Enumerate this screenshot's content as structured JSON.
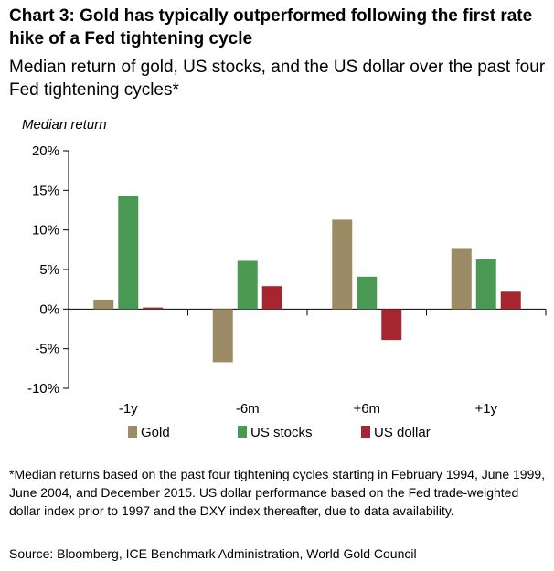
{
  "title": "Chart 3: Gold has typically outperformed following the first rate hike of a Fed tightening cycle",
  "subtitle": "Median return of gold, US stocks, and the US dollar over the past four Fed tightening cycles*",
  "footnote": "*Median returns based on the past four tightening cycles starting in February 1994, June 1999, June 2004, and December 2015. US dollar performance based on the Fed trade-weighted dollar index prior to 1997 and the DXY index thereafter, due to data availability.",
  "source": "Source: Bloomberg, ICE Benchmark Administration, World Gold Council",
  "chart_data": {
    "type": "bar",
    "ylabel": "Median return",
    "ylim": [
      -10,
      20
    ],
    "yticks": [
      20,
      15,
      10,
      5,
      0,
      -5,
      -10
    ],
    "ytick_labels": [
      "20%",
      "15%",
      "10%",
      "5%",
      "0%",
      "-5%",
      "-10%"
    ],
    "categories": [
      "-1y",
      "-6m",
      "+6m",
      "+1y"
    ],
    "series": [
      {
        "name": "Gold",
        "color": "#9c8c66",
        "values": [
          1.2,
          -6.7,
          11.3,
          7.6
        ]
      },
      {
        "name": "US stocks",
        "color": "#4a9a53",
        "values": [
          14.3,
          6.1,
          4.1,
          6.3
        ]
      },
      {
        "name": "US dollar",
        "color": "#a62630",
        "values": [
          0.2,
          2.9,
          -3.9,
          2.2
        ]
      }
    ],
    "grid": false,
    "legend_position": "bottom"
  }
}
